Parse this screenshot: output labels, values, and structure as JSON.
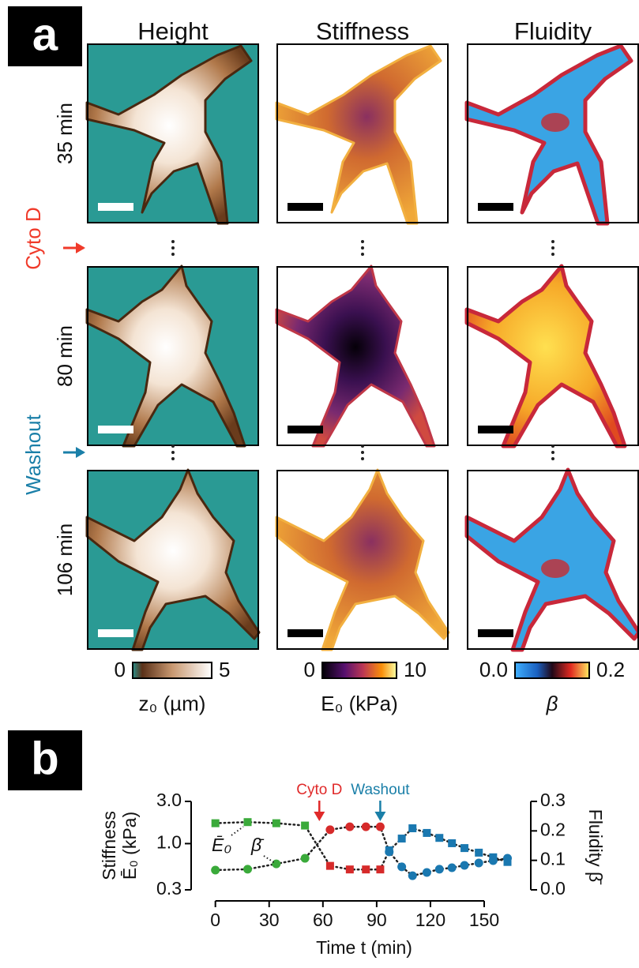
{
  "panel_a": {
    "label": "a",
    "columns": [
      "Height",
      "Stiffness",
      "Fluidity"
    ],
    "rows": [
      "35 min",
      "80 min",
      "106 min"
    ],
    "treatments": [
      {
        "text": "Cyto D",
        "color": "#f03a2a"
      },
      {
        "text": "Washout",
        "color": "#1a7fa8"
      }
    ],
    "colorbars": [
      {
        "label": "z₀ (µm)",
        "lim": [
          0,
          5
        ],
        "ticks": [
          0,
          5
        ]
      },
      {
        "label": "E₀ (kPa)",
        "lim": [
          0,
          10
        ],
        "ticks": [
          0,
          10
        ]
      },
      {
        "label": "β",
        "lim": [
          0,
          0.2
        ],
        "ticks": [
          {
            "value": 0,
            "label": "0.0"
          },
          0.2
        ]
      }
    ]
  },
  "chart_data": {
    "type": "scatter",
    "panel_label": "b",
    "xlabel": "Time t (min)",
    "ylabel": [
      "Stiffness",
      "Ē₀ (kPa)"
    ],
    "y2label": "Fluidity β̄",
    "xlim": [
      -10,
      176
    ],
    "xticks": [
      0,
      30,
      60,
      90,
      120,
      150
    ],
    "ylim": [
      0.3,
      3.0
    ],
    "ylog": true,
    "yticks": [
      0.3,
      {
        "value": 1,
        "label": "1.0"
      },
      {
        "value": 3,
        "label": "3.0"
      }
    ],
    "y2lim": [
      0,
      0.3
    ],
    "y2ticks": [
      {
        "value": 0,
        "label": "0.0"
      },
      0.1,
      0.2,
      0.3
    ],
    "curve_labels": [
      "Ē₀",
      "β̄"
    ],
    "annotations": [
      {
        "text": "Cyto D",
        "x": 58,
        "color": "#e02a2a"
      },
      {
        "text": "Washout",
        "x": 92,
        "color": "#1a7fa8"
      }
    ],
    "series": [
      {
        "color": "#3aaa3a",
        "marker": "square",
        "axis": "y",
        "x": [
          0,
          18,
          34,
          50
        ],
        "values": [
          1.7,
          1.75,
          1.7,
          1.6
        ]
      },
      {
        "color": "#d62a2a",
        "marker": "square",
        "axis": "y",
        "x": [
          64,
          75,
          84,
          92
        ],
        "values": [
          0.56,
          0.51,
          0.51,
          0.51
        ]
      },
      {
        "color": "#1a78b0",
        "marker": "square",
        "axis": "y",
        "x": [
          97,
          104,
          110,
          118,
          125,
          132,
          139,
          147,
          155,
          163
        ],
        "values": [
          0.84,
          1.14,
          1.49,
          1.32,
          1.16,
          1.01,
          0.89,
          0.79,
          0.7,
          0.62
        ]
      },
      {
        "color": "#3aaa3a",
        "marker": "circle",
        "axis": "y2",
        "x": [
          0,
          18,
          34,
          50
        ],
        "values": [
          0.067,
          0.07,
          0.088,
          0.107
        ]
      },
      {
        "color": "#d62a2a",
        "marker": "circle",
        "axis": "y2",
        "x": [
          64,
          75,
          84,
          92
        ],
        "values": [
          0.204,
          0.214,
          0.214,
          0.214
        ]
      },
      {
        "color": "#1a78b0",
        "marker": "circle",
        "axis": "y2",
        "x": [
          97,
          104,
          110,
          118,
          125,
          132,
          139,
          147,
          155,
          163
        ],
        "values": [
          0.129,
          0.078,
          0.048,
          0.059,
          0.07,
          0.075,
          0.083,
          0.091,
          0.099,
          0.107
        ]
      }
    ]
  }
}
